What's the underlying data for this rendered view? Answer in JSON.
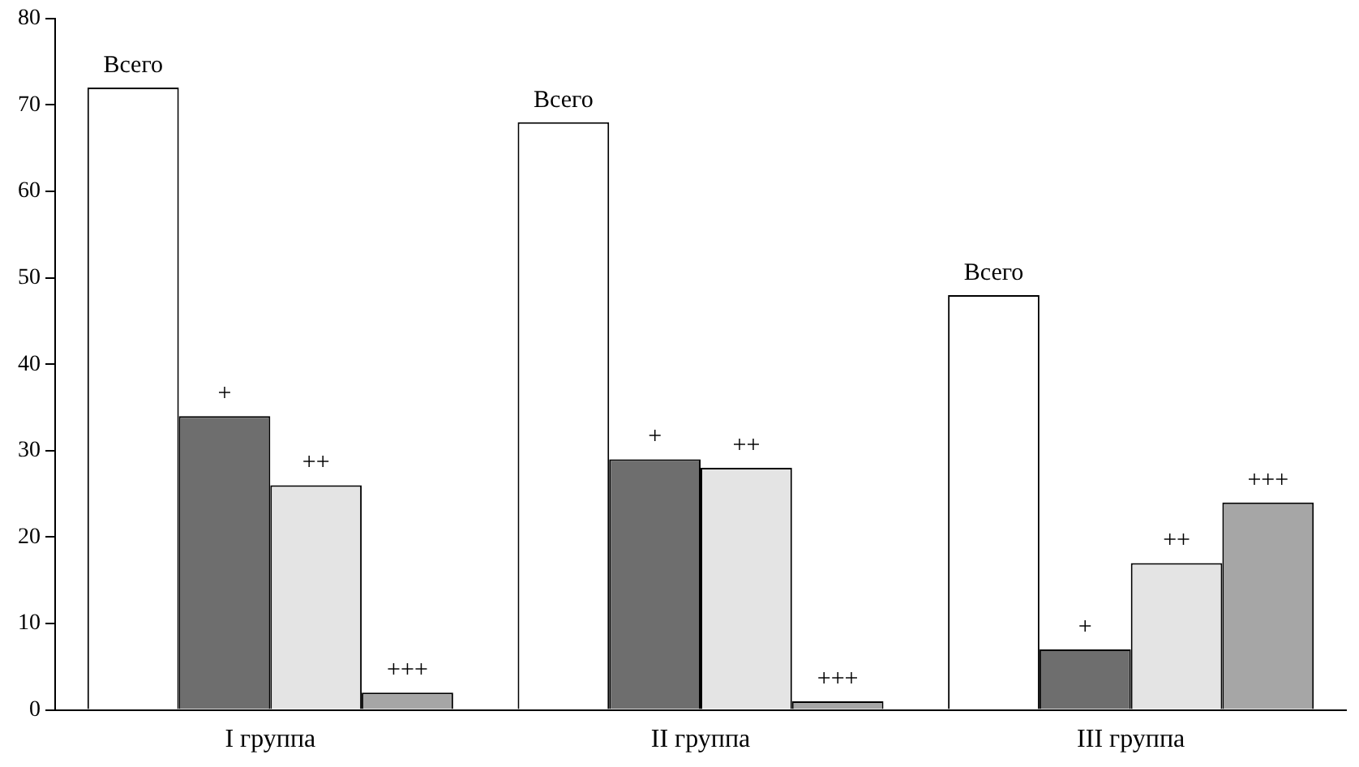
{
  "chart_data": {
    "type": "bar",
    "categories": [
      "I группа",
      "II группа",
      "III группа"
    ],
    "series": [
      {
        "name": "Всего",
        "color": "#ffffff",
        "values": [
          72,
          68,
          48
        ]
      },
      {
        "name": "+",
        "color": "#6e6e6e",
        "values": [
          34,
          29,
          7
        ]
      },
      {
        "name": "++",
        "color": "#e4e4e4",
        "values": [
          26,
          28,
          17
        ]
      },
      {
        "name": "+++",
        "color": "#a6a6a6",
        "values": [
          2,
          1,
          24
        ]
      }
    ],
    "ylim": [
      0,
      80
    ],
    "yticks": [
      0,
      10,
      20,
      30,
      40,
      50,
      60,
      70,
      80
    ],
    "grid": false,
    "legend": false
  }
}
